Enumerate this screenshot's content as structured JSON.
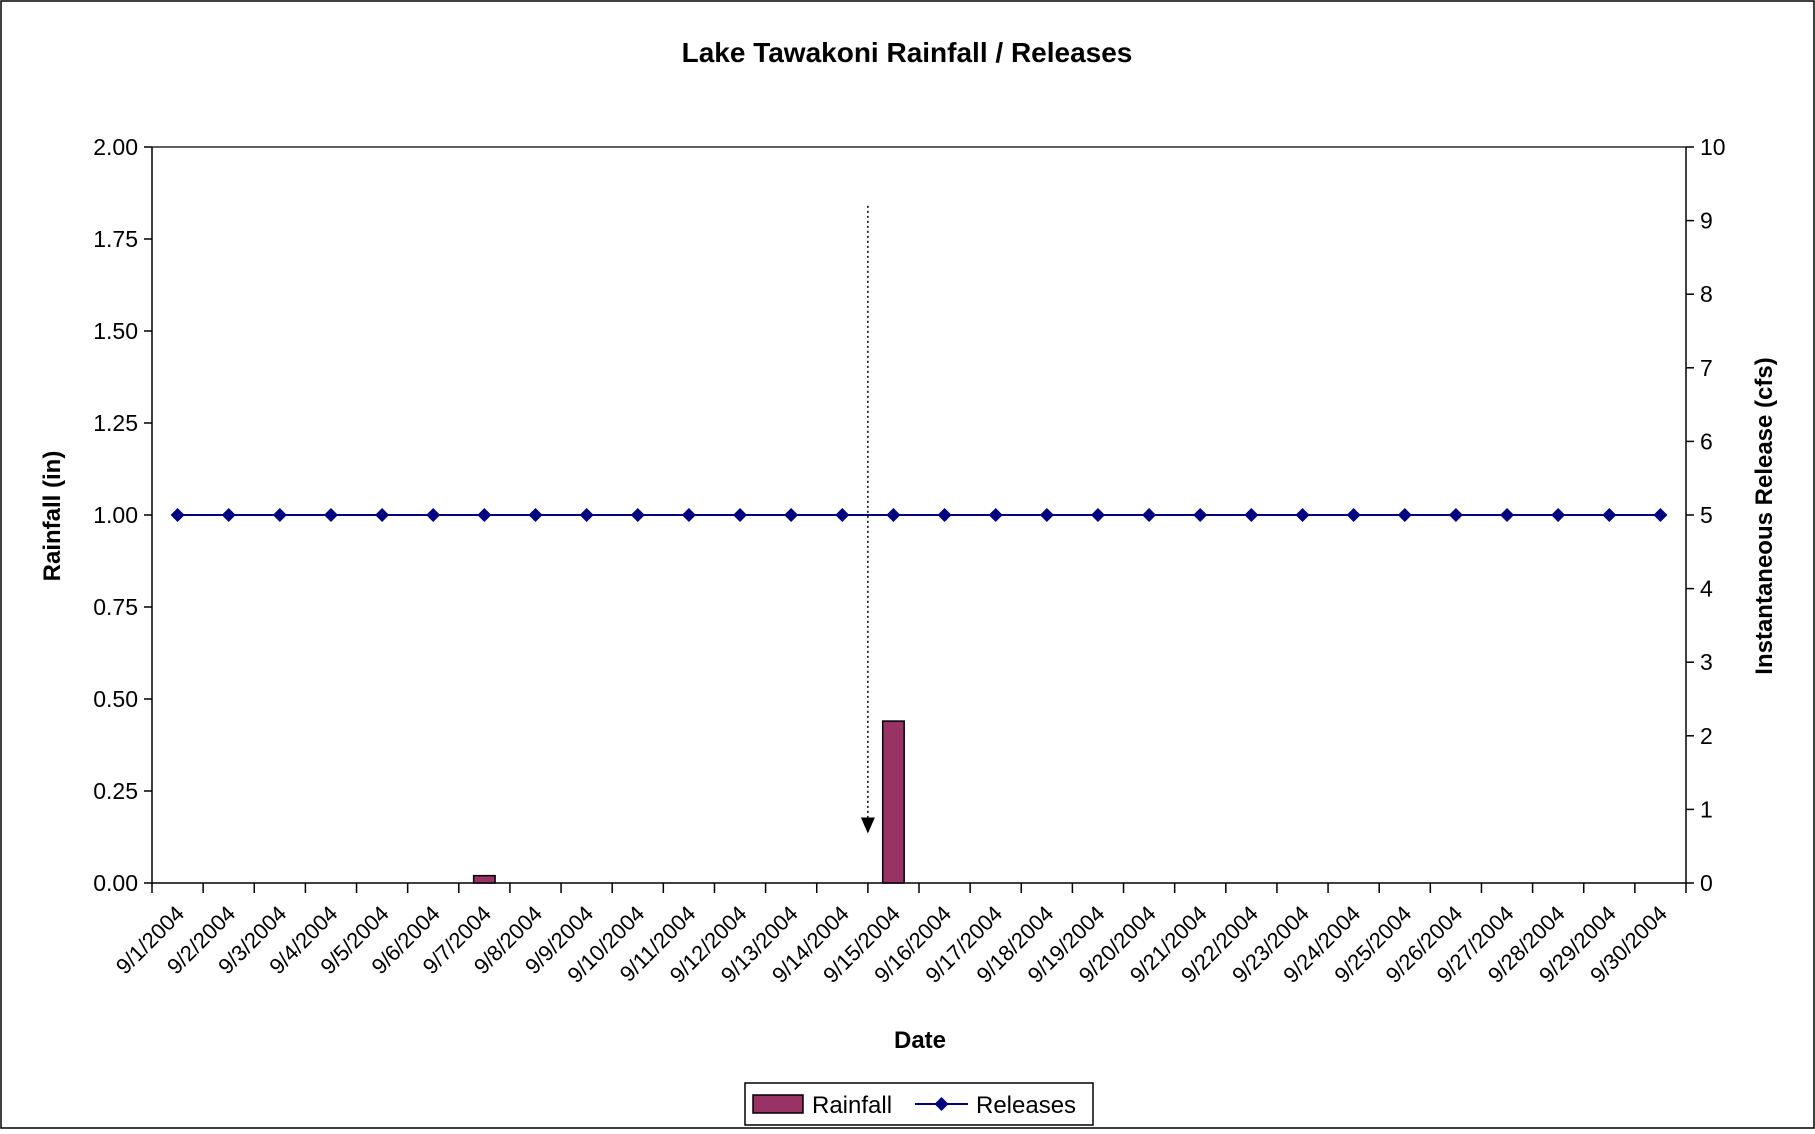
{
  "chart_data": {
    "type": "bar+line",
    "title": "Lake Tawakoni Rainfall / Releases",
    "xlabel": "Date",
    "ylabel_left": "Rainfall (in)",
    "ylabel_right": "Instantaneous Release (cfs)",
    "ylim_left": [
      0,
      2
    ],
    "ylim_right": [
      0,
      10
    ],
    "left_ticks": [
      "0.00",
      "0.25",
      "0.50",
      "0.75",
      "1.00",
      "1.25",
      "1.50",
      "1.75",
      "2.00"
    ],
    "right_ticks": [
      "0",
      "1",
      "2",
      "3",
      "4",
      "5",
      "6",
      "7",
      "8",
      "9",
      "10"
    ],
    "categories": [
      "9/1/2004",
      "9/2/2004",
      "9/3/2004",
      "9/4/2004",
      "9/5/2004",
      "9/6/2004",
      "9/7/2004",
      "9/8/2004",
      "9/9/2004",
      "9/10/2004",
      "9/11/2004",
      "9/12/2004",
      "9/13/2004",
      "9/14/2004",
      "9/15/2004",
      "9/16/2004",
      "9/17/2004",
      "9/18/2004",
      "9/19/2004",
      "9/20/2004",
      "9/21/2004",
      "9/22/2004",
      "9/23/2004",
      "9/24/2004",
      "9/25/2004",
      "9/26/2004",
      "9/27/2004",
      "9/28/2004",
      "9/29/2004",
      "9/30/2004"
    ],
    "series": [
      {
        "name": "Rainfall",
        "kind": "bar",
        "axis": "left",
        "color": "#993366",
        "values": [
          0,
          0,
          0,
          0,
          0,
          0,
          0.02,
          0,
          0,
          0,
          0,
          0,
          0,
          0,
          0.44,
          0,
          0,
          0,
          0,
          0,
          0,
          0,
          0,
          0,
          0,
          0,
          0,
          0,
          0,
          0
        ]
      },
      {
        "name": "Releases",
        "kind": "line",
        "axis": "right",
        "color": "#000080",
        "marker": "diamond",
        "values": [
          5,
          5,
          5,
          5,
          5,
          5,
          5,
          5,
          5,
          5,
          5,
          5,
          5,
          5,
          5,
          5,
          5,
          5,
          5,
          5,
          5,
          5,
          5,
          5,
          5,
          5,
          5,
          5,
          5,
          5
        ]
      }
    ],
    "annotation": {
      "kind": "dotted-arrow",
      "x_category": "9/14/2004",
      "y_start": 9.2,
      "y_end": 0.7
    },
    "grid": false,
    "legend_position": "bottom"
  }
}
